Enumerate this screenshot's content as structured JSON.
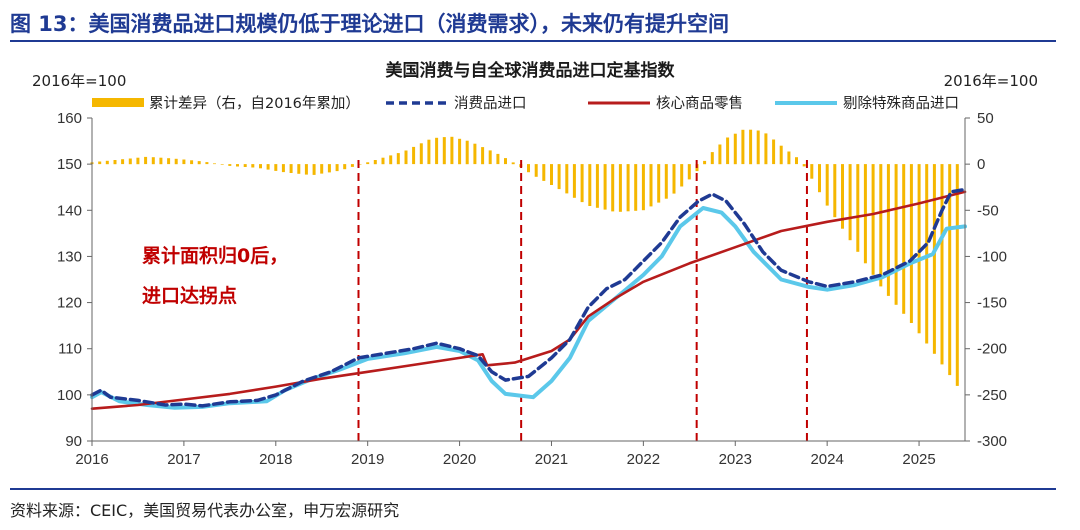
{
  "figure_title": "图 13：美国消费品进口规模仍低于理论进口（消费需求），未来仍有提升空间",
  "source": "资料来源：CEIC，美国贸易代表办公室，申万宏源研究",
  "colors": {
    "header_blue": "#1f3a93",
    "bar": "#f5b700",
    "consumer_imports": "#1f3a93",
    "core_goods_retail": "#b71c1c",
    "ex_special_imports": "#5bc8ea",
    "annotation": "#c00000",
    "vline": "#c00000"
  },
  "chart_data": {
    "type": "bar+line",
    "title": "美国消费与自全球消费品进口定基指数",
    "left_unit": "2016年=100",
    "right_unit": "2016年=100",
    "annotation_lines": [
      "累计面积归0后，",
      "进口达拐点"
    ],
    "x_ticks": [
      "2016",
      "2017",
      "2018",
      "2019",
      "2020",
      "2021",
      "2022",
      "2023",
      "2024",
      "2025"
    ],
    "x_range": [
      2016.0,
      2025.5
    ],
    "left_axis": {
      "min": 90,
      "max": 160,
      "ticks": [
        90,
        100,
        110,
        120,
        130,
        140,
        150,
        160
      ]
    },
    "right_axis": {
      "min": -300,
      "max": 50,
      "ticks": [
        -300,
        -250,
        -200,
        -150,
        -100,
        -50,
        0,
        50
      ]
    },
    "vertical_lines_x": [
      2018.9,
      2020.67,
      2022.58,
      2023.78
    ],
    "legend_position": "top",
    "grid": false,
    "series": [
      {
        "name": "累计差异（右，自2016年累加）",
        "kind": "bar",
        "axis": "right",
        "points": [
          [
            2016.0,
            2
          ],
          [
            2016.3,
            5
          ],
          [
            2016.6,
            8
          ],
          [
            2016.9,
            6
          ],
          [
            2017.2,
            3
          ],
          [
            2017.5,
            -2
          ],
          [
            2017.8,
            -4
          ],
          [
            2018.1,
            -9
          ],
          [
            2018.4,
            -12
          ],
          [
            2018.7,
            -7
          ],
          [
            2018.9,
            -1
          ],
          [
            2019.1,
            5
          ],
          [
            2019.4,
            14
          ],
          [
            2019.7,
            28
          ],
          [
            2019.9,
            30
          ],
          [
            2020.1,
            25
          ],
          [
            2020.4,
            12
          ],
          [
            2020.6,
            1
          ],
          [
            2020.8,
            -12
          ],
          [
            2021.1,
            -28
          ],
          [
            2021.4,
            -45
          ],
          [
            2021.7,
            -52
          ],
          [
            2022.0,
            -50
          ],
          [
            2022.3,
            -35
          ],
          [
            2022.55,
            -12
          ],
          [
            2022.7,
            8
          ],
          [
            2022.9,
            28
          ],
          [
            2023.1,
            38
          ],
          [
            2023.3,
            36
          ],
          [
            2023.5,
            20
          ],
          [
            2023.7,
            5
          ],
          [
            2023.8,
            -10
          ],
          [
            2024.0,
            -45
          ],
          [
            2024.3,
            -90
          ],
          [
            2024.6,
            -135
          ],
          [
            2024.9,
            -170
          ],
          [
            2025.2,
            -210
          ],
          [
            2025.45,
            -245
          ]
        ]
      },
      {
        "name": "消费品进口",
        "kind": "line-dashed",
        "axis": "left",
        "points": [
          [
            2016.0,
            100
          ],
          [
            2016.1,
            101
          ],
          [
            2016.2,
            99.5
          ],
          [
            2016.5,
            98.8
          ],
          [
            2016.8,
            97.8
          ],
          [
            2017.0,
            98
          ],
          [
            2017.2,
            97.6
          ],
          [
            2017.5,
            98.5
          ],
          [
            2017.8,
            98.8
          ],
          [
            2018.0,
            100
          ],
          [
            2018.3,
            103
          ],
          [
            2018.6,
            105
          ],
          [
            2018.9,
            108
          ],
          [
            2019.2,
            109
          ],
          [
            2019.5,
            110
          ],
          [
            2019.75,
            111.2
          ],
          [
            2020.0,
            110
          ],
          [
            2020.2,
            108.5
          ],
          [
            2020.35,
            105
          ],
          [
            2020.5,
            103.2
          ],
          [
            2020.75,
            104
          ],
          [
            2021.0,
            108
          ],
          [
            2021.2,
            112
          ],
          [
            2021.4,
            119
          ],
          [
            2021.6,
            123
          ],
          [
            2021.8,
            125
          ],
          [
            2022.0,
            129
          ],
          [
            2022.2,
            133
          ],
          [
            2022.4,
            138.5
          ],
          [
            2022.6,
            142
          ],
          [
            2022.75,
            143.5
          ],
          [
            2022.9,
            142
          ],
          [
            2023.1,
            137
          ],
          [
            2023.3,
            131
          ],
          [
            2023.5,
            127
          ],
          [
            2023.8,
            124.5
          ],
          [
            2024.0,
            123.5
          ],
          [
            2024.3,
            124.5
          ],
          [
            2024.6,
            126
          ],
          [
            2024.9,
            129
          ],
          [
            2025.1,
            133
          ],
          [
            2025.25,
            140
          ],
          [
            2025.35,
            144
          ],
          [
            2025.5,
            144.5
          ]
        ]
      },
      {
        "name": "核心商品零售",
        "kind": "line",
        "axis": "left",
        "points": [
          [
            2016.0,
            97
          ],
          [
            2016.5,
            97.8
          ],
          [
            2017.0,
            99
          ],
          [
            2017.5,
            100.2
          ],
          [
            2018.0,
            101.8
          ],
          [
            2018.5,
            103.5
          ],
          [
            2019.0,
            105
          ],
          [
            2019.5,
            106.5
          ],
          [
            2020.0,
            108
          ],
          [
            2020.25,
            108.8
          ],
          [
            2020.3,
            106.4
          ],
          [
            2020.6,
            107
          ],
          [
            2021.0,
            109.5
          ],
          [
            2021.2,
            112
          ],
          [
            2021.4,
            117
          ],
          [
            2021.7,
            121
          ],
          [
            2022.0,
            124.5
          ],
          [
            2022.5,
            128.5
          ],
          [
            2023.0,
            132
          ],
          [
            2023.5,
            135.5
          ],
          [
            2024.0,
            137.5
          ],
          [
            2024.5,
            139.2
          ],
          [
            2025.0,
            141.5
          ],
          [
            2025.5,
            144
          ]
        ]
      },
      {
        "name": "剔除特殊商品进口",
        "kind": "line",
        "axis": "left",
        "points": [
          [
            2016.0,
            99.5
          ],
          [
            2016.1,
            100.6
          ],
          [
            2016.3,
            98.6
          ],
          [
            2016.6,
            97.8
          ],
          [
            2016.9,
            97.2
          ],
          [
            2017.2,
            97.4
          ],
          [
            2017.5,
            98.2
          ],
          [
            2017.9,
            98.6
          ],
          [
            2018.1,
            101
          ],
          [
            2018.4,
            103.5
          ],
          [
            2018.7,
            105.5
          ],
          [
            2019.0,
            107.8
          ],
          [
            2019.4,
            109
          ],
          [
            2019.75,
            110.4
          ],
          [
            2020.0,
            109.5
          ],
          [
            2020.2,
            107.5
          ],
          [
            2020.35,
            103
          ],
          [
            2020.5,
            100.2
          ],
          [
            2020.8,
            99.5
          ],
          [
            2021.0,
            103
          ],
          [
            2021.2,
            108
          ],
          [
            2021.4,
            116
          ],
          [
            2021.7,
            121
          ],
          [
            2022.0,
            126
          ],
          [
            2022.2,
            130
          ],
          [
            2022.4,
            136.5
          ],
          [
            2022.65,
            140.5
          ],
          [
            2022.85,
            139.5
          ],
          [
            2023.0,
            136.5
          ],
          [
            2023.2,
            131
          ],
          [
            2023.5,
            125
          ],
          [
            2023.8,
            123.4
          ],
          [
            2024.0,
            122.8
          ],
          [
            2024.3,
            123.8
          ],
          [
            2024.6,
            125.5
          ],
          [
            2024.9,
            128.5
          ],
          [
            2025.15,
            130.5
          ],
          [
            2025.3,
            136
          ],
          [
            2025.5,
            136.5
          ]
        ]
      }
    ]
  }
}
